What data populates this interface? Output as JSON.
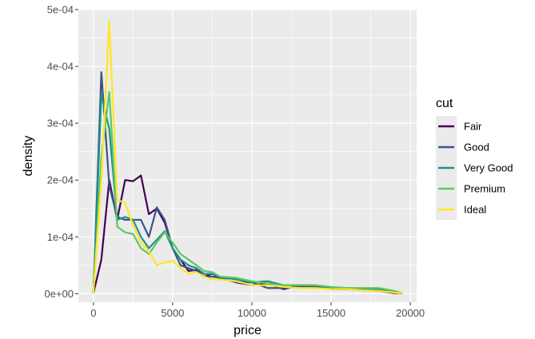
{
  "chart_data": {
    "type": "line",
    "xlabel": "price",
    "ylabel": "density",
    "xlim": [
      -950,
      20400
    ],
    "ylim": [
      -1.5e-05,
      0.0005
    ],
    "x_ticks": [
      0,
      5000,
      10000,
      15000,
      20000
    ],
    "x_tick_labels": [
      "0",
      "5000",
      "10000",
      "15000",
      "20000"
    ],
    "y_ticks": [
      0,
      0.0001,
      0.0002,
      0.0003,
      0.0004,
      0.0005
    ],
    "y_tick_labels": [
      "0e+00",
      "1e-04",
      "2e-04",
      "3e-04",
      "4e-04",
      "5e-04"
    ],
    "grid": true,
    "legend": {
      "title": "cut",
      "position": "right"
    },
    "series": [
      {
        "name": "Fair",
        "color": "#440154",
        "x": [
          0,
          500,
          1000,
          1500,
          2000,
          2500,
          3000,
          3500,
          4000,
          4500,
          5000,
          5500,
          6000,
          6500,
          7000,
          7500,
          8000,
          9000,
          10000,
          11000,
          12000,
          13000,
          14000,
          15000,
          16000,
          17000,
          18000,
          19000,
          19500
        ],
        "y": [
          1e-06,
          6e-05,
          0.0002,
          0.00013,
          0.0002,
          0.000198,
          0.000208,
          0.00014,
          0.00015,
          0.000125,
          8e-05,
          6e-05,
          4e-05,
          4.2e-05,
          3e-05,
          3.5e-05,
          2.8e-05,
          2e-05,
          1.5e-05,
          1.8e-05,
          8e-06,
          1.5e-05,
          1.2e-05,
          8e-06,
          8e-06,
          6e-06,
          5e-06,
          1e-06,
          1e-06
        ]
      },
      {
        "name": "Good",
        "color": "#3b528b",
        "x": [
          0,
          500,
          1000,
          1500,
          2000,
          2500,
          3000,
          3500,
          4000,
          4500,
          5000,
          5500,
          6000,
          6500,
          7000,
          7500,
          8000,
          9000,
          10000,
          11000,
          12000,
          13000,
          14000,
          15000,
          16000,
          17000,
          18000,
          19000,
          19500
        ],
        "y": [
          1e-06,
          0.00039,
          0.00019,
          0.000135,
          0.00013,
          0.00013,
          0.00013,
          0.0001,
          0.000152,
          0.00013,
          8e-05,
          5e-05,
          4.5e-05,
          4e-05,
          3e-05,
          3e-05,
          2.8e-05,
          2e-05,
          2e-05,
          1e-05,
          1e-05,
          1.2e-05,
          1.2e-05,
          1e-05,
          8e-06,
          8e-06,
          6e-06,
          2e-06,
          1e-06
        ]
      },
      {
        "name": "Very Good",
        "color": "#21908c",
        "x": [
          0,
          500,
          1000,
          1500,
          2000,
          2500,
          3000,
          3500,
          4000,
          4500,
          5000,
          5500,
          6000,
          6500,
          7000,
          7500,
          8000,
          9000,
          10000,
          11000,
          12000,
          13000,
          14000,
          15000,
          16000,
          17000,
          18000,
          19000,
          19500
        ],
        "y": [
          1e-06,
          0.00035,
          0.00029,
          0.00013,
          0.000135,
          0.00013,
          0.0001,
          8e-05,
          9.5e-05,
          0.00011,
          8e-05,
          6e-05,
          5e-05,
          4.5e-05,
          3.5e-05,
          3.5e-05,
          3e-05,
          2.5e-05,
          2e-05,
          2.2e-05,
          1.5e-05,
          1.5e-05,
          1.5e-05,
          1e-05,
          1e-05,
          8e-06,
          8e-06,
          2e-06,
          1e-06
        ]
      },
      {
        "name": "Premium",
        "color": "#5dc863",
        "x": [
          0,
          500,
          1000,
          1500,
          2000,
          2500,
          3000,
          3500,
          4000,
          4500,
          5000,
          5500,
          6000,
          6500,
          7000,
          7500,
          8000,
          9000,
          10000,
          11000,
          12000,
          13000,
          14000,
          15000,
          16000,
          17000,
          18000,
          19000,
          19500
        ],
        "y": [
          1e-06,
          0.00024,
          0.000355,
          0.000118,
          0.000108,
          0.000105,
          8e-05,
          7e-05,
          9e-05,
          0.000108,
          9e-05,
          7e-05,
          6e-05,
          5e-05,
          4e-05,
          3.8e-05,
          3e-05,
          2.8e-05,
          2.2e-05,
          1.8e-05,
          1.5e-05,
          1.5e-05,
          1.5e-05,
          1.2e-05,
          1e-05,
          1e-05,
          1e-05,
          5e-06,
          1e-06
        ]
      },
      {
        "name": "Ideal",
        "color": "#fde725",
        "x": [
          0,
          500,
          1000,
          1500,
          2000,
          2500,
          3000,
          3500,
          4000,
          4500,
          5000,
          5500,
          6000,
          6500,
          7000,
          7500,
          8000,
          9000,
          10000,
          11000,
          12000,
          13000,
          14000,
          15000,
          16000,
          17000,
          18000,
          19000,
          19500
        ],
        "y": [
          1e-06,
          0.0002,
          0.00048,
          0.000165,
          0.00016,
          0.00012,
          9e-05,
          7.5e-05,
          5e-05,
          5.5e-05,
          5.8e-05,
          4.5e-05,
          3.5e-05,
          3.8e-05,
          3e-05,
          2.5e-05,
          2.5e-05,
          2.2e-05,
          1.5e-05,
          1.5e-05,
          1.2e-05,
          1e-05,
          1e-05,
          8e-06,
          8e-06,
          6e-06,
          5e-06,
          2e-06,
          1e-06
        ]
      }
    ]
  }
}
